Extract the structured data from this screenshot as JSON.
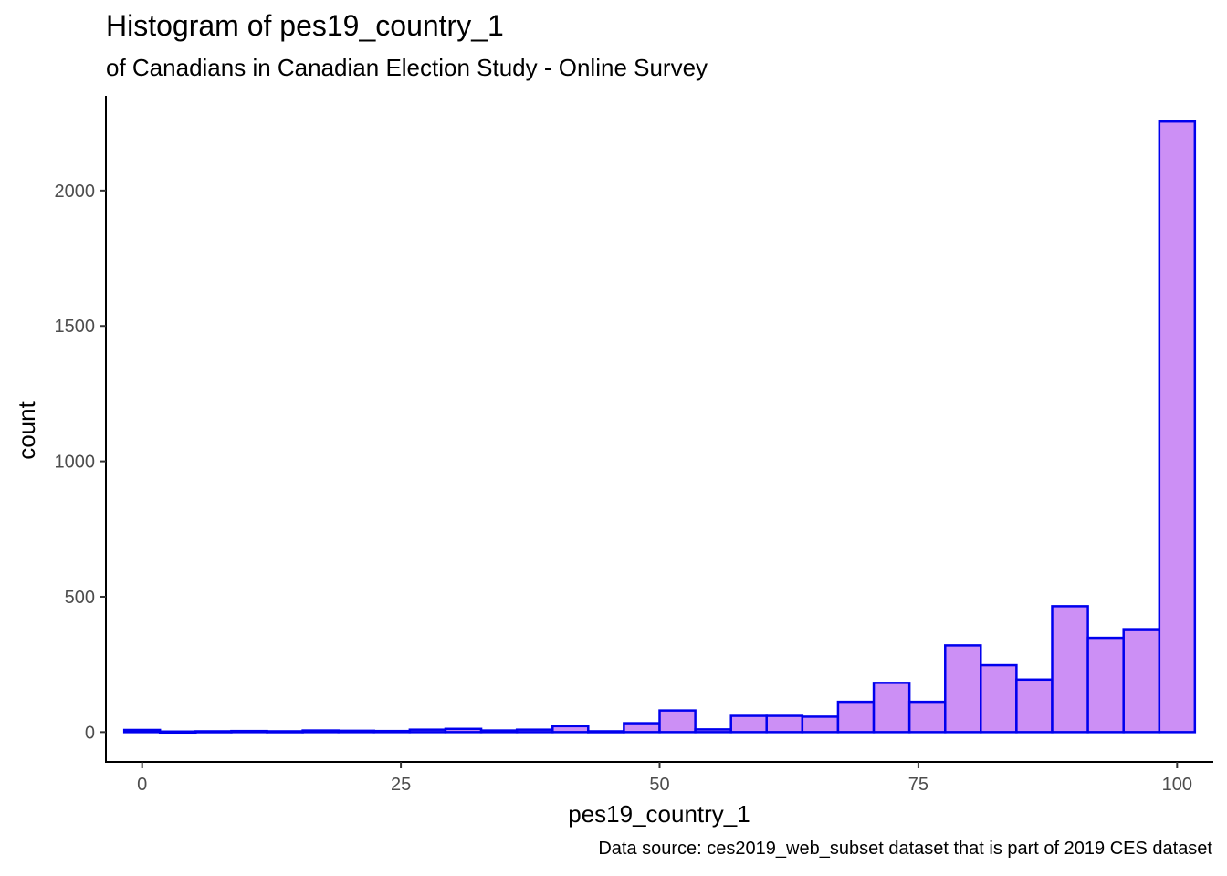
{
  "chart_data": {
    "type": "bar",
    "title": "Histogram of pes19_country_1",
    "subtitle": "of Canadians in Canadian Election Study - Online Survey",
    "caption": "Data source: ces2019_web_subset dataset that is part of 2019 CES dataset",
    "xlabel": "pes19_country_1",
    "ylabel": "count",
    "xlim": [
      -3.5,
      103.5
    ],
    "ylim": [
      -110,
      2350
    ],
    "x_ticks": [
      0,
      25,
      50,
      75,
      100
    ],
    "y_ticks": [
      0,
      500,
      1000,
      1500,
      2000
    ],
    "grid": false,
    "bin_width": 3.448,
    "bins": [
      {
        "x0": -1.72,
        "x1": 1.72,
        "count": 8
      },
      {
        "x0": 1.72,
        "x1": 5.17,
        "count": 2
      },
      {
        "x0": 5.17,
        "x1": 8.62,
        "count": 3
      },
      {
        "x0": 8.62,
        "x1": 12.07,
        "count": 4
      },
      {
        "x0": 12.07,
        "x1": 15.52,
        "count": 3
      },
      {
        "x0": 15.52,
        "x1": 18.97,
        "count": 6
      },
      {
        "x0": 18.97,
        "x1": 22.41,
        "count": 5
      },
      {
        "x0": 22.41,
        "x1": 25.86,
        "count": 4
      },
      {
        "x0": 25.86,
        "x1": 29.31,
        "count": 9
      },
      {
        "x0": 29.31,
        "x1": 32.76,
        "count": 12
      },
      {
        "x0": 32.76,
        "x1": 36.21,
        "count": 6
      },
      {
        "x0": 36.21,
        "x1": 39.66,
        "count": 9
      },
      {
        "x0": 39.66,
        "x1": 43.1,
        "count": 22
      },
      {
        "x0": 43.1,
        "x1": 46.55,
        "count": 3
      },
      {
        "x0": 46.55,
        "x1": 50.0,
        "count": 33
      },
      {
        "x0": 50.0,
        "x1": 53.45,
        "count": 80
      },
      {
        "x0": 53.45,
        "x1": 56.9,
        "count": 10
      },
      {
        "x0": 56.9,
        "x1": 60.34,
        "count": 60
      },
      {
        "x0": 60.34,
        "x1": 63.79,
        "count": 60
      },
      {
        "x0": 63.79,
        "x1": 67.24,
        "count": 57
      },
      {
        "x0": 67.24,
        "x1": 70.69,
        "count": 112
      },
      {
        "x0": 70.69,
        "x1": 74.14,
        "count": 182
      },
      {
        "x0": 74.14,
        "x1": 77.59,
        "count": 112
      },
      {
        "x0": 77.59,
        "x1": 81.03,
        "count": 320
      },
      {
        "x0": 81.03,
        "x1": 84.48,
        "count": 247
      },
      {
        "x0": 84.48,
        "x1": 87.93,
        "count": 194
      },
      {
        "x0": 87.93,
        "x1": 91.38,
        "count": 465
      },
      {
        "x0": 91.38,
        "x1": 94.83,
        "count": 348
      },
      {
        "x0": 94.83,
        "x1": 98.28,
        "count": 380
      },
      {
        "x0": 98.28,
        "x1": 101.72,
        "count": 2255
      }
    ],
    "fill_color": "#cc8ff5",
    "stroke_color": "#0000ee"
  }
}
